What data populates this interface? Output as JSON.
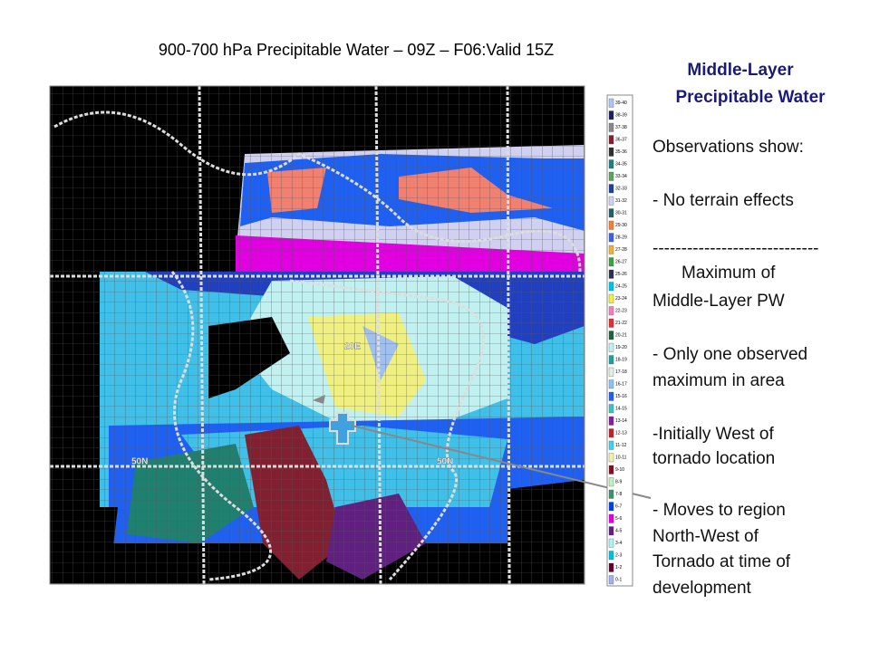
{
  "header": {
    "title": "900-700 hPa Precipitable Water – 09Z – F06:Valid 15Z"
  },
  "panel": {
    "heading": [
      "Middle-Layer",
      "Precipitable Water"
    ],
    "lines": [
      "Observations show:",
      "- No terrain effects",
      "-----------------------------",
      "Maximum of",
      "Middle-Layer PW",
      "- Only one observed",
      "maximum in area",
      "-Initially West of",
      "tornado location",
      "- Moves to region",
      "North-West of",
      "Tornado at time of",
      "development"
    ]
  },
  "map": {
    "labels": [
      "20E",
      "50N",
      "50N"
    ]
  },
  "legend": {
    "labels": [
      "39-40",
      "38-39",
      "37-38",
      "36-37",
      "35-36",
      "34-35",
      "33-34",
      "32-33",
      "31-32",
      "30-31",
      "29-30",
      "28-29",
      "27-28",
      "26-27",
      "25-26",
      "24-25",
      "23-24",
      "22-23",
      "21-22",
      "20-21",
      "19-20",
      "18-19",
      "17-18",
      "16-17",
      "15-16",
      "14-15",
      "13-14",
      "12-13",
      "11-12",
      "10-11",
      "9-10",
      "8-9",
      "7-8",
      "6-7",
      "5-6",
      "4-5",
      "3-4",
      "2-3",
      "1-2",
      "0-1"
    ],
    "colors": [
      "#a8c8f0",
      "#202060",
      "#888888",
      "#802030",
      "#303030",
      "#208080",
      "#60a060",
      "#2040a0",
      "#d0d0f0",
      "#206060",
      "#f08040",
      "#4060e0",
      "#f0b040",
      "#40a040",
      "#303050",
      "#00c0f0",
      "#f0f040",
      "#f080c0",
      "#e03030",
      "#206040",
      "#c0f0f0",
      "#20a0a0",
      "#e0f0e0",
      "#90c0f0",
      "#2060f0",
      "#40c0c0",
      "#8020a0",
      "#c02030",
      "#40d0f0",
      "#f0f0b0",
      "#801020",
      "#c0f0c0",
      "#409070",
      "#0040f0",
      "#e000e0",
      "#602080",
      "#b0f0f0",
      "#00c0e0",
      "#600030",
      "#a0b0f0"
    ]
  }
}
